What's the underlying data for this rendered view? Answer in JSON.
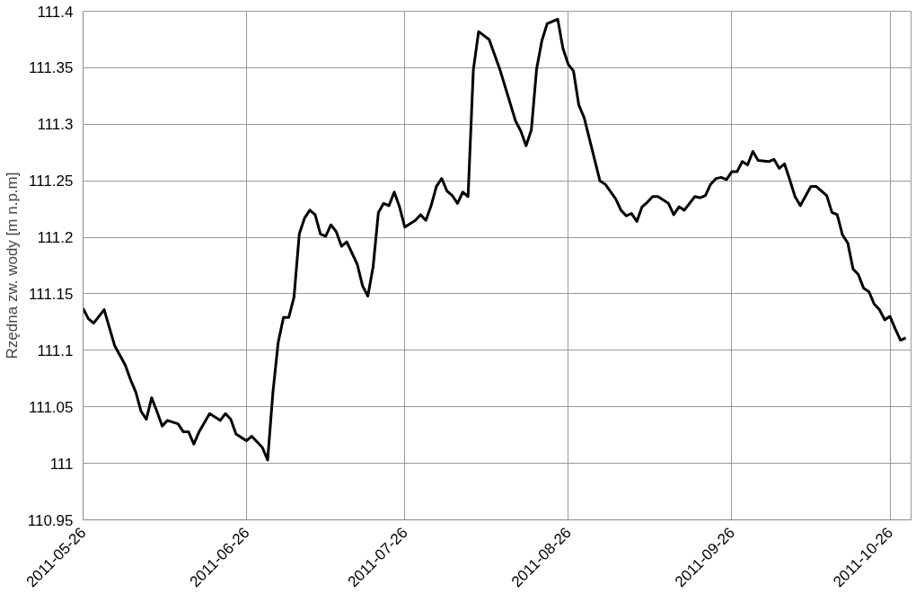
{
  "chart_data": {
    "type": "line",
    "ylabel": "Rzędna zw. wody [m n.p.m]",
    "x": [
      "2011-05-26",
      "2011-05-27",
      "2011-05-28",
      "2011-05-29",
      "2011-05-30",
      "2011-06-01",
      "2011-06-03",
      "2011-06-04",
      "2011-06-05",
      "2011-06-06",
      "2011-06-07",
      "2011-06-08",
      "2011-06-09",
      "2011-06-10",
      "2011-06-11",
      "2011-06-13",
      "2011-06-14",
      "2011-06-15",
      "2011-06-16",
      "2011-06-17",
      "2011-06-19",
      "2011-06-21",
      "2011-06-22",
      "2011-06-23",
      "2011-06-24",
      "2011-06-25",
      "2011-06-26",
      "2011-06-27",
      "2011-06-29",
      "2011-06-30",
      "2011-07-01",
      "2011-07-02",
      "2011-07-03",
      "2011-07-04",
      "2011-07-05",
      "2011-07-06",
      "2011-07-07",
      "2011-07-08",
      "2011-07-09",
      "2011-07-10",
      "2011-07-11",
      "2011-07-12",
      "2011-07-13",
      "2011-07-14",
      "2011-07-15",
      "2011-07-17",
      "2011-07-18",
      "2011-07-19",
      "2011-07-20",
      "2011-07-21",
      "2011-07-22",
      "2011-07-23",
      "2011-07-24",
      "2011-07-25",
      "2011-07-26",
      "2011-07-28",
      "2011-07-29",
      "2011-07-30",
      "2011-07-31",
      "2011-08-01",
      "2011-08-02",
      "2011-08-03",
      "2011-08-04",
      "2011-08-05",
      "2011-08-06",
      "2011-08-07",
      "2011-08-08",
      "2011-08-09",
      "2011-08-11",
      "2011-08-13",
      "2011-08-16",
      "2011-08-17",
      "2011-08-18",
      "2011-08-19",
      "2011-08-20",
      "2011-08-21",
      "2011-08-22",
      "2011-08-24",
      "2011-08-25",
      "2011-08-26",
      "2011-08-27",
      "2011-08-28",
      "2011-08-29",
      "2011-09-01",
      "2011-09-02",
      "2011-09-04",
      "2011-09-05",
      "2011-09-06",
      "2011-09-07",
      "2011-09-08",
      "2011-09-09",
      "2011-09-10",
      "2011-09-11",
      "2011-09-12",
      "2011-09-14",
      "2011-09-15",
      "2011-09-16",
      "2011-09-17",
      "2011-09-19",
      "2011-09-20",
      "2011-09-21",
      "2011-09-22",
      "2011-09-23",
      "2011-09-24",
      "2011-09-25",
      "2011-09-26",
      "2011-09-27",
      "2011-09-28",
      "2011-09-29",
      "2011-09-30",
      "2011-10-01",
      "2011-10-03",
      "2011-10-04",
      "2011-10-05",
      "2011-10-06",
      "2011-10-07",
      "2011-10-08",
      "2011-10-09",
      "2011-10-11",
      "2011-10-12",
      "2011-10-13",
      "2011-10-14",
      "2011-10-15",
      "2011-10-16",
      "2011-10-17",
      "2011-10-18",
      "2011-10-19",
      "2011-10-20",
      "2011-10-21",
      "2011-10-22",
      "2011-10-23",
      "2011-10-24",
      "2011-10-25",
      "2011-10-26",
      "2011-10-27",
      "2011-10-28",
      "2011-10-29"
    ],
    "series": [
      {
        "color": "#000000",
        "values": [
          111.137,
          111.128,
          111.124,
          111.13,
          111.136,
          111.104,
          111.087,
          111.074,
          111.063,
          111.046,
          111.039,
          111.058,
          111.046,
          111.033,
          111.038,
          111.035,
          111.028,
          111.028,
          111.017,
          111.028,
          111.044,
          111.038,
          111.044,
          111.039,
          111.026,
          111.023,
          111.02,
          111.024,
          111.014,
          111.003,
          111.063,
          111.107,
          111.129,
          111.129,
          111.147,
          111.203,
          111.217,
          111.224,
          111.22,
          111.203,
          111.201,
          111.211,
          111.205,
          111.192,
          111.196,
          111.176,
          111.157,
          111.148,
          111.174,
          111.222,
          111.23,
          111.228,
          111.24,
          111.227,
          111.209,
          111.215,
          111.22,
          111.215,
          111.228,
          111.245,
          111.252,
          111.241,
          111.237,
          111.23,
          111.24,
          111.236,
          111.348,
          111.382,
          111.375,
          111.349,
          111.303,
          111.294,
          111.281,
          111.295,
          111.349,
          111.374,
          111.389,
          111.393,
          111.367,
          111.353,
          111.347,
          111.317,
          111.306,
          111.25,
          111.247,
          111.234,
          111.224,
          111.219,
          111.221,
          111.214,
          111.227,
          111.231,
          111.236,
          111.236,
          111.23,
          111.22,
          111.227,
          111.224,
          111.236,
          111.235,
          111.237,
          111.247,
          111.252,
          111.253,
          111.251,
          111.258,
          111.258,
          111.267,
          111.264,
          111.276,
          111.268,
          111.267,
          111.269,
          111.261,
          111.265,
          111.251,
          111.236,
          111.228,
          111.245,
          111.245,
          111.241,
          111.237,
          111.222,
          111.22,
          111.202,
          111.195,
          111.172,
          111.167,
          111.155,
          111.152,
          111.141,
          111.136,
          111.127,
          111.13,
          111.119,
          111.109,
          111.111
        ]
      }
    ],
    "xlim": [
      "2011-05-26",
      "2011-10-30"
    ],
    "xticks": [
      "2011-05-26",
      "2011-06-26",
      "2011-07-26",
      "2011-08-26",
      "2011-09-26",
      "2011-10-26"
    ],
    "ylim": [
      110.95,
      111.4
    ],
    "yticks": [
      110.95,
      111,
      111.05,
      111.1,
      111.15,
      111.2,
      111.25,
      111.3,
      111.35,
      111.4
    ],
    "grid": true,
    "marker": "none",
    "line_style": "solid"
  }
}
